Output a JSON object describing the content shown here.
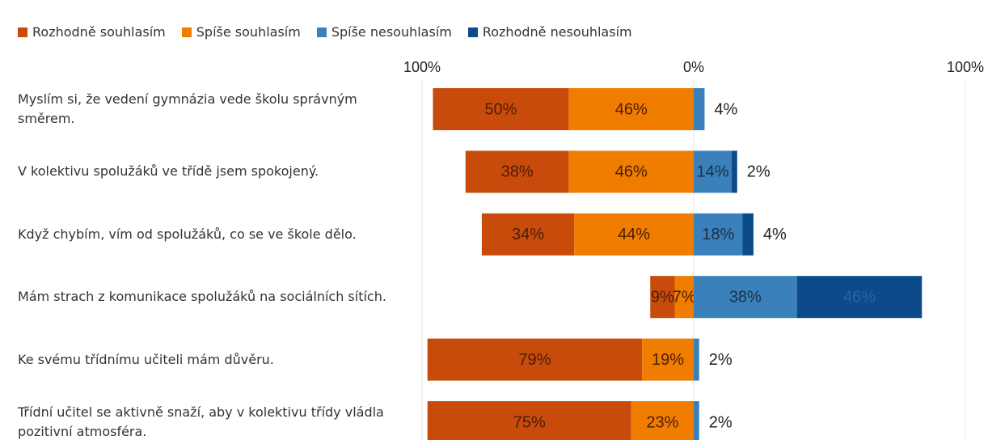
{
  "chart_data": {
    "type": "diverging-bar",
    "categories": [
      "Myslím si, že vedení gymnázia vede školu správným směrem.",
      "V kolektivu spolužáků ve třídě jsem spokojený.",
      "Když chybím, vím od spolužáků, co se ve škole dělo.",
      "Mám strach z komunikace spolužáků na sociálních sítích.",
      "Ke svému třídnímu učiteli mám důvěru.",
      "Třídní učitel se aktivně snaží, aby v kolektivu třídy vládla pozitivní atmosféra."
    ],
    "series": [
      {
        "name": "Rozhodně souhlasím",
        "color": "#c84b0c",
        "side": "left",
        "values": [
          50,
          38,
          34,
          9,
          79,
          75
        ],
        "value_labels": [
          "50%",
          "38%",
          "34%",
          "9%",
          "79%",
          "75%"
        ]
      },
      {
        "name": "Spíše souhlasím",
        "color": "#f07c00",
        "side": "left",
        "values": [
          46,
          46,
          44,
          7,
          19,
          23
        ],
        "value_labels": [
          "46%",
          "46%",
          "44%",
          "7%",
          "19%",
          "23%"
        ]
      },
      {
        "name": "Spíše nesouhlasím",
        "color": "#3a80ba",
        "side": "right",
        "values": [
          4,
          14,
          18,
          38,
          2,
          2
        ],
        "value_labels": [
          "4%",
          "14%",
          "18%",
          "38%",
          "2%",
          "2%"
        ]
      },
      {
        "name": "Rozhodně nesouhlasím",
        "color": "#0d4a8a",
        "side": "right",
        "values": [
          null,
          2,
          4,
          46,
          null,
          null
        ],
        "value_labels": [
          null,
          "2%",
          "4%",
          "46%",
          null,
          null
        ]
      }
    ],
    "xlim": [
      -100,
      100
    ],
    "xticks": [
      {
        "value": -100,
        "label": "100%"
      },
      {
        "value": 0,
        "label": "0%"
      },
      {
        "value": 100,
        "label": "100%"
      }
    ],
    "grid": true
  }
}
